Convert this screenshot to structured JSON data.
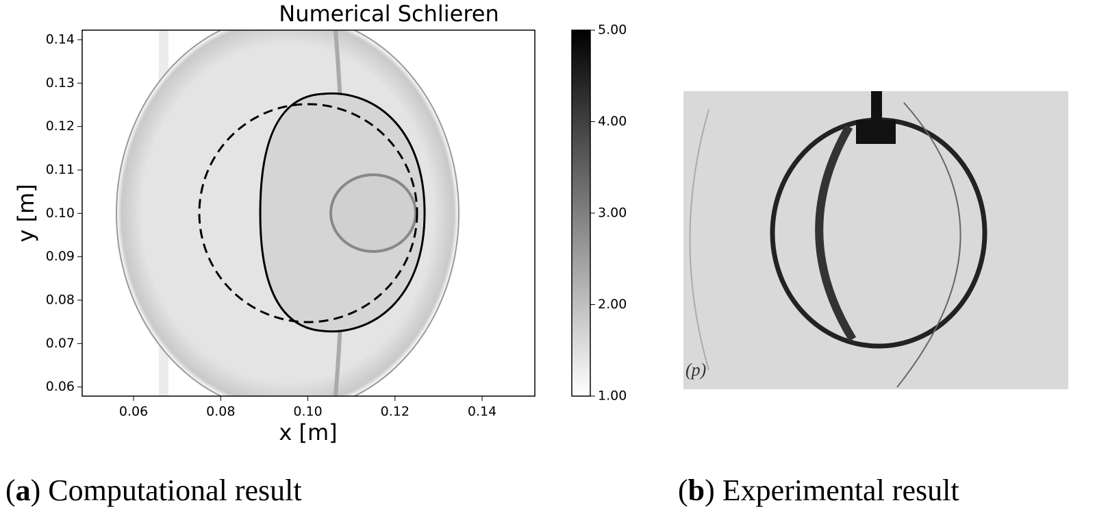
{
  "chart_data": {
    "type": "heatmap",
    "title": "Numerical Schlieren",
    "xlabel": "x [m]",
    "ylabel": "y [m]",
    "xlim": [
      0.0482,
      0.1521
    ],
    "ylim": [
      0.0579,
      0.1422
    ],
    "xticks": [
      0.06,
      0.08,
      {
        "value": 0.1,
        "label": "0.10"
      },
      0.12,
      0.14
    ],
    "yticks": [
      0.06,
      0.07,
      0.08,
      0.09,
      {
        "value": 0.1,
        "label": "0.10"
      },
      0.11,
      0.12,
      0.13,
      0.14
    ],
    "colorbar": {
      "lim": [
        1,
        5
      ],
      "ticks": [
        {
          "value": 1,
          "label": "1.00"
        },
        {
          "value": 2,
          "label": "2.00"
        },
        {
          "value": 3,
          "label": "3.00"
        },
        {
          "value": 4,
          "label": "4.00"
        },
        {
          "value": 5,
          "label": "5.00"
        }
      ]
    }
  },
  "photo": {
    "label": "(p)"
  },
  "captions": [
    [
      "(",
      "a",
      ") Computational result"
    ],
    [
      "(",
      "b",
      ") Experimental result"
    ]
  ]
}
